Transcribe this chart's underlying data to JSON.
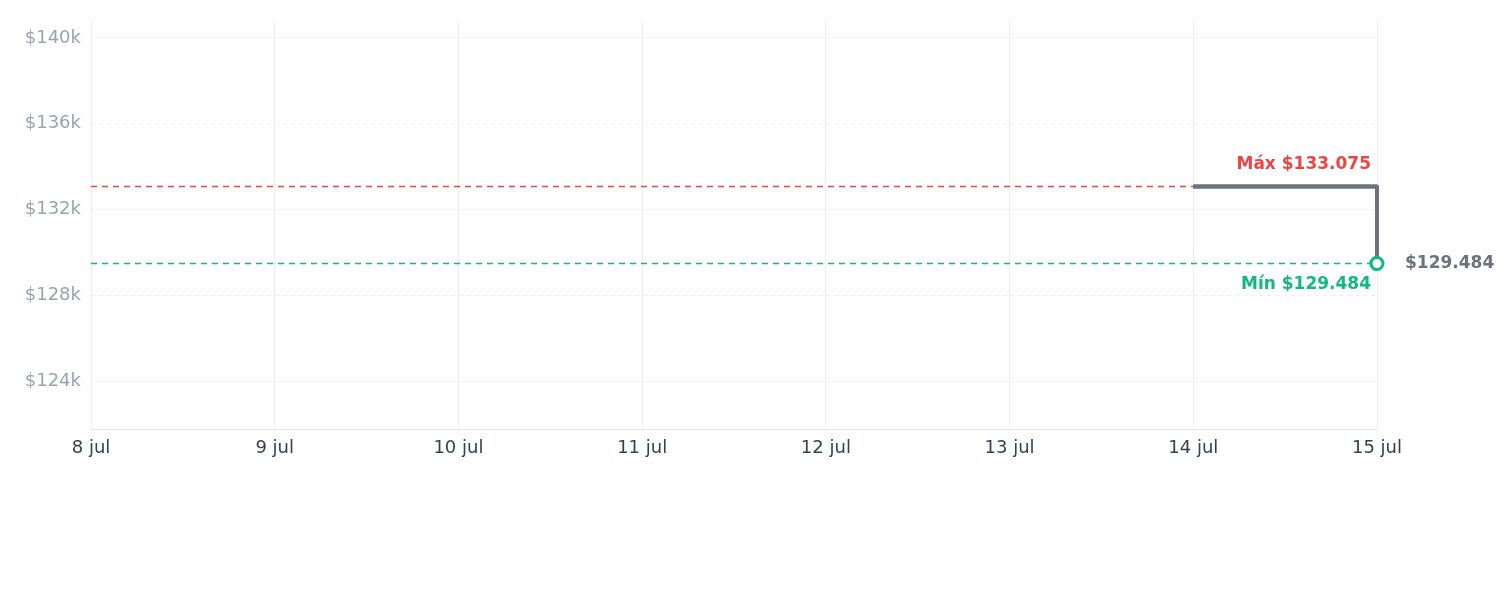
{
  "chart_data": {
    "type": "step",
    "xlim": [
      "--07-08",
      "--07-15"
    ],
    "xticks": [
      {
        "value": "--07-08",
        "label": "8 jul"
      },
      {
        "value": "--07-09",
        "label": "9 jul"
      },
      {
        "value": "--07-10",
        "label": "10 jul"
      },
      {
        "value": "--07-11",
        "label": "11 jul"
      },
      {
        "value": "--07-12",
        "label": "12 jul"
      },
      {
        "value": "--07-13",
        "label": "13 jul"
      },
      {
        "value": "--07-14",
        "label": "14 jul"
      },
      {
        "value": "--07-15",
        "label": "15 jul"
      }
    ],
    "ylim": [
      121750,
      140800
    ],
    "yticks": [
      {
        "value": 124000,
        "label": "$124k"
      },
      {
        "value": 128000,
        "label": "$128k"
      },
      {
        "value": 132000,
        "label": "$132k"
      },
      {
        "value": 136000,
        "label": "$136k"
      },
      {
        "value": 140000,
        "label": "$140k"
      }
    ],
    "series": [
      {
        "color": "#6b7280",
        "x": [
          "--07-14",
          "--07-15"
        ],
        "values": [
          133075,
          129484
        ]
      }
    ],
    "marker": "circle",
    "grid": true,
    "ref_lines": [
      {
        "axis": "y",
        "value": 133075,
        "label": "Máx $133.075",
        "color": "#ef4444",
        "line_style": "dashed"
      },
      {
        "axis": "y",
        "value": 129484,
        "label": "Mín $129.484",
        "color": "#10b981",
        "line_style": "dashed"
      }
    ],
    "annotations": [
      {
        "text": "$129.484",
        "x": "--07-15",
        "y": 129484
      }
    ]
  }
}
